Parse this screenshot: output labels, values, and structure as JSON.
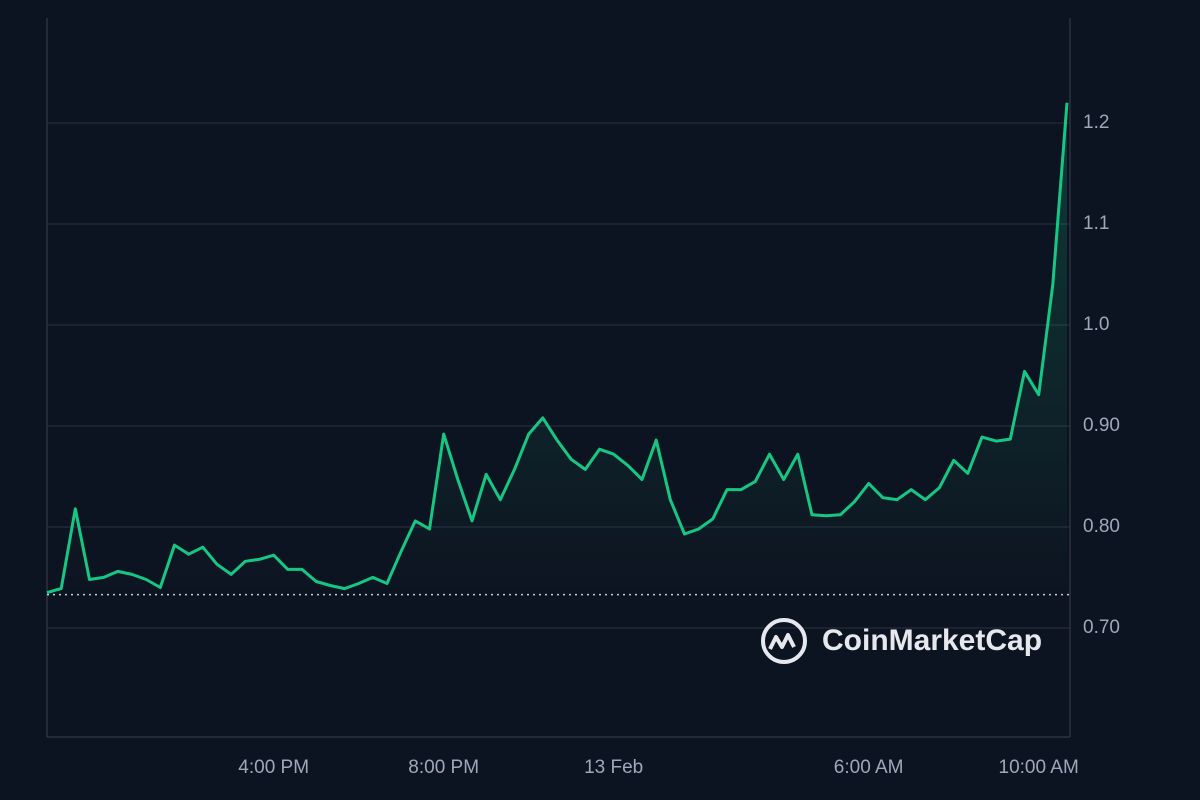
{
  "chart_data": {
    "type": "line",
    "watermark": "CoinMarketCap",
    "color": "#16c784",
    "grid": true,
    "reference_line": 0.733,
    "ylim": [
      0.592,
      1.304
    ],
    "yticks": [
      {
        "value": 0.7,
        "label": "0.70"
      },
      {
        "value": 0.8,
        "label": "0.80"
      },
      {
        "value": 0.9,
        "label": "0.90"
      },
      {
        "value": 1.0,
        "label": "1.0"
      },
      1.1,
      1.2
    ],
    "categories": [
      null,
      null,
      null,
      null,
      null,
      null,
      null,
      null,
      null,
      null,
      null,
      null,
      null,
      null,
      null,
      null,
      "4:00 PM",
      null,
      null,
      null,
      null,
      null,
      null,
      null,
      null,
      null,
      null,
      null,
      "8:00 PM",
      null,
      null,
      null,
      null,
      null,
      null,
      null,
      null,
      null,
      null,
      null,
      "13 Feb",
      null,
      null,
      null,
      null,
      null,
      null,
      null,
      null,
      null,
      null,
      null,
      null,
      null,
      null,
      null,
      null,
      null,
      "6:00 AM",
      null,
      null,
      null,
      null,
      null,
      null,
      null,
      null,
      null,
      null,
      null,
      "10:00 AM",
      null,
      null
    ],
    "values": [
      0.735,
      0.739,
      0.818,
      0.748,
      0.75,
      0.756,
      0.753,
      0.748,
      0.74,
      0.782,
      0.773,
      0.78,
      0.763,
      0.753,
      0.766,
      0.768,
      0.772,
      0.758,
      0.758,
      0.746,
      0.742,
      0.739,
      0.744,
      0.75,
      0.744,
      0.776,
      0.806,
      0.798,
      0.892,
      0.847,
      0.806,
      0.852,
      0.827,
      0.857,
      0.892,
      0.908,
      0.886,
      0.867,
      0.857,
      0.877,
      0.872,
      0.861,
      0.847,
      0.886,
      0.827,
      0.793,
      0.798,
      0.808,
      0.837,
      0.837,
      0.845,
      0.872,
      0.847,
      0.872,
      0.812,
      0.811,
      0.812,
      0.825,
      0.843,
      0.829,
      0.827,
      0.837,
      0.827,
      0.839,
      0.866,
      0.853,
      0.889,
      0.885,
      0.887,
      0.954,
      0.931,
      1.04,
      1.22
    ]
  }
}
